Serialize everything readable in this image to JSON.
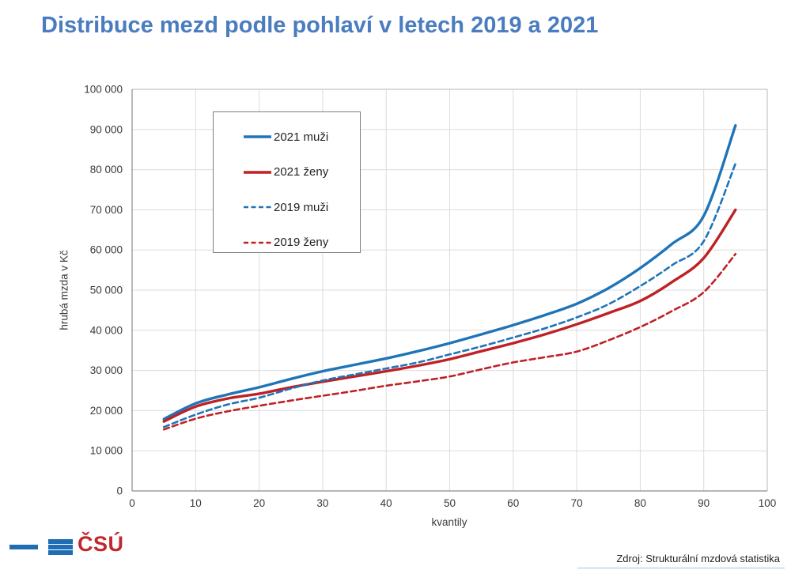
{
  "title": "Distribuce mezd podle pohlaví v letech 2019 a 2021",
  "colors": {
    "title": "#4a7cbf",
    "male_line": "#1f74b8",
    "female_line": "#be2126",
    "grid": "#dcdcdc",
    "plot_border": "#b7b7b7",
    "axis_line": "#8c8c8c",
    "tick_text": "#3a3a3a",
    "logo_blue": "#1f6db4",
    "logo_red": "#c2262e"
  },
  "chart_data": {
    "type": "line",
    "title": "Distribuce mezd podle pohlaví v letech 2019 a 2021",
    "xlabel": "kvantily",
    "ylabel": "hrubá mzda v Kč",
    "xlim": [
      0,
      100
    ],
    "ylim": [
      0,
      100000
    ],
    "grid": true,
    "legend_position": "upper-left-inside",
    "x_ticks": [
      0,
      10,
      20,
      30,
      40,
      50,
      60,
      70,
      80,
      90,
      100
    ],
    "x_tick_labels": [
      "0",
      "10",
      "20",
      "30",
      "40",
      "50",
      "60",
      "70",
      "80",
      "90",
      "100"
    ],
    "y_ticks": [
      0,
      10000,
      20000,
      30000,
      40000,
      50000,
      60000,
      70000,
      80000,
      90000,
      100000
    ],
    "y_tick_labels": [
      "0",
      "10 000",
      "20 000",
      "30 000",
      "40 000",
      "50 000",
      "60 000",
      "70 000",
      "80 000",
      "90 000",
      "100 000"
    ],
    "x": [
      5,
      10,
      15,
      20,
      25,
      30,
      35,
      40,
      45,
      50,
      55,
      60,
      65,
      70,
      75,
      80,
      85,
      90,
      95
    ],
    "series": [
      {
        "name": "2021 muži",
        "color": "#1f74b8",
        "dash": false,
        "values": [
          17900,
          21800,
          24000,
          25800,
          27900,
          29800,
          31400,
          33000,
          34800,
          36800,
          39000,
          41300,
          43800,
          46600,
          50500,
          55500,
          61500,
          68500,
          91000
        ]
      },
      {
        "name": "2021 ženy",
        "color": "#be2126",
        "dash": false,
        "values": [
          17300,
          21000,
          23000,
          24200,
          25800,
          27200,
          28500,
          29800,
          31200,
          32800,
          34800,
          36800,
          39000,
          41500,
          44300,
          47300,
          52000,
          58000,
          70000
        ]
      },
      {
        "name": "2019 muži",
        "color": "#1f74b8",
        "dash": true,
        "values": [
          15900,
          19000,
          21500,
          23200,
          25500,
          27500,
          29000,
          30500,
          32000,
          34000,
          36000,
          38200,
          40500,
          43200,
          46500,
          51000,
          56200,
          62200,
          81500
        ]
      },
      {
        "name": "2019 ženy",
        "color": "#be2126",
        "dash": true,
        "values": [
          15300,
          18000,
          19800,
          21200,
          22500,
          23700,
          24900,
          26200,
          27300,
          28500,
          30300,
          32000,
          33300,
          34700,
          37500,
          40800,
          44800,
          49500,
          59000
        ]
      }
    ]
  },
  "footer": {
    "source": "Zdroj: Strukturální mzdová statistika"
  },
  "logo": {
    "text": "ČSÚ"
  }
}
